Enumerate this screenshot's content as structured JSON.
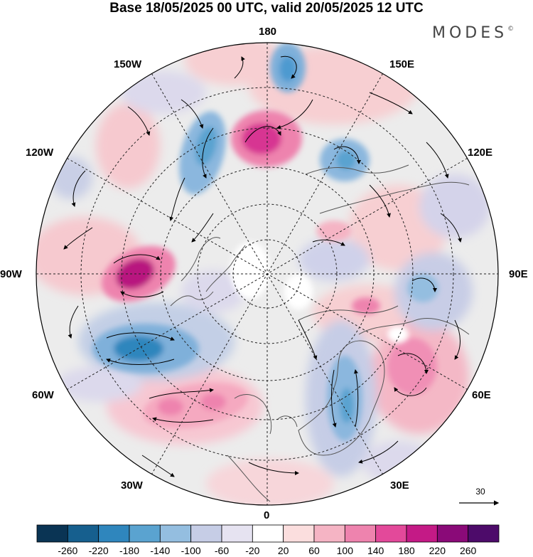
{
  "title": "Base 18/05/2025 00 UTC, valid 20/05/2025 12 UTC",
  "brand": {
    "name": "MODES",
    "mark": "©"
  },
  "longitude_labels": {
    "lon_180": "180",
    "lon_150E": "150E",
    "lon_120E": "120E",
    "lon_90E": "90E",
    "lon_60E": "60E",
    "lon_30E": "30E",
    "lon_0": "0",
    "lon_30W": "30W",
    "lon_60W": "60W",
    "lon_90W": "90W",
    "lon_120W": "120W",
    "lon_150W": "150W"
  },
  "vector_scale": {
    "label": "30"
  },
  "colorbar": {
    "tick_labels": [
      "-260",
      "-220",
      "-180",
      "-140",
      "-100",
      "-60",
      "-20",
      "20",
      "60",
      "100",
      "140",
      "180",
      "220",
      "260"
    ],
    "colors": [
      "#0a3454",
      "#165f8e",
      "#2f86bd",
      "#5aa3d0",
      "#94bee0",
      "#c6cde6",
      "#e6e3f1",
      "#ffffff",
      "#fbdede",
      "#f5b4c4",
      "#ee83ae",
      "#e3499a",
      "#c41a86",
      "#8a0a78",
      "#4d0b6a"
    ]
  },
  "colors": {
    "positive": "#e0449a",
    "negative": "#2f86bd",
    "grid": "#222222"
  }
}
